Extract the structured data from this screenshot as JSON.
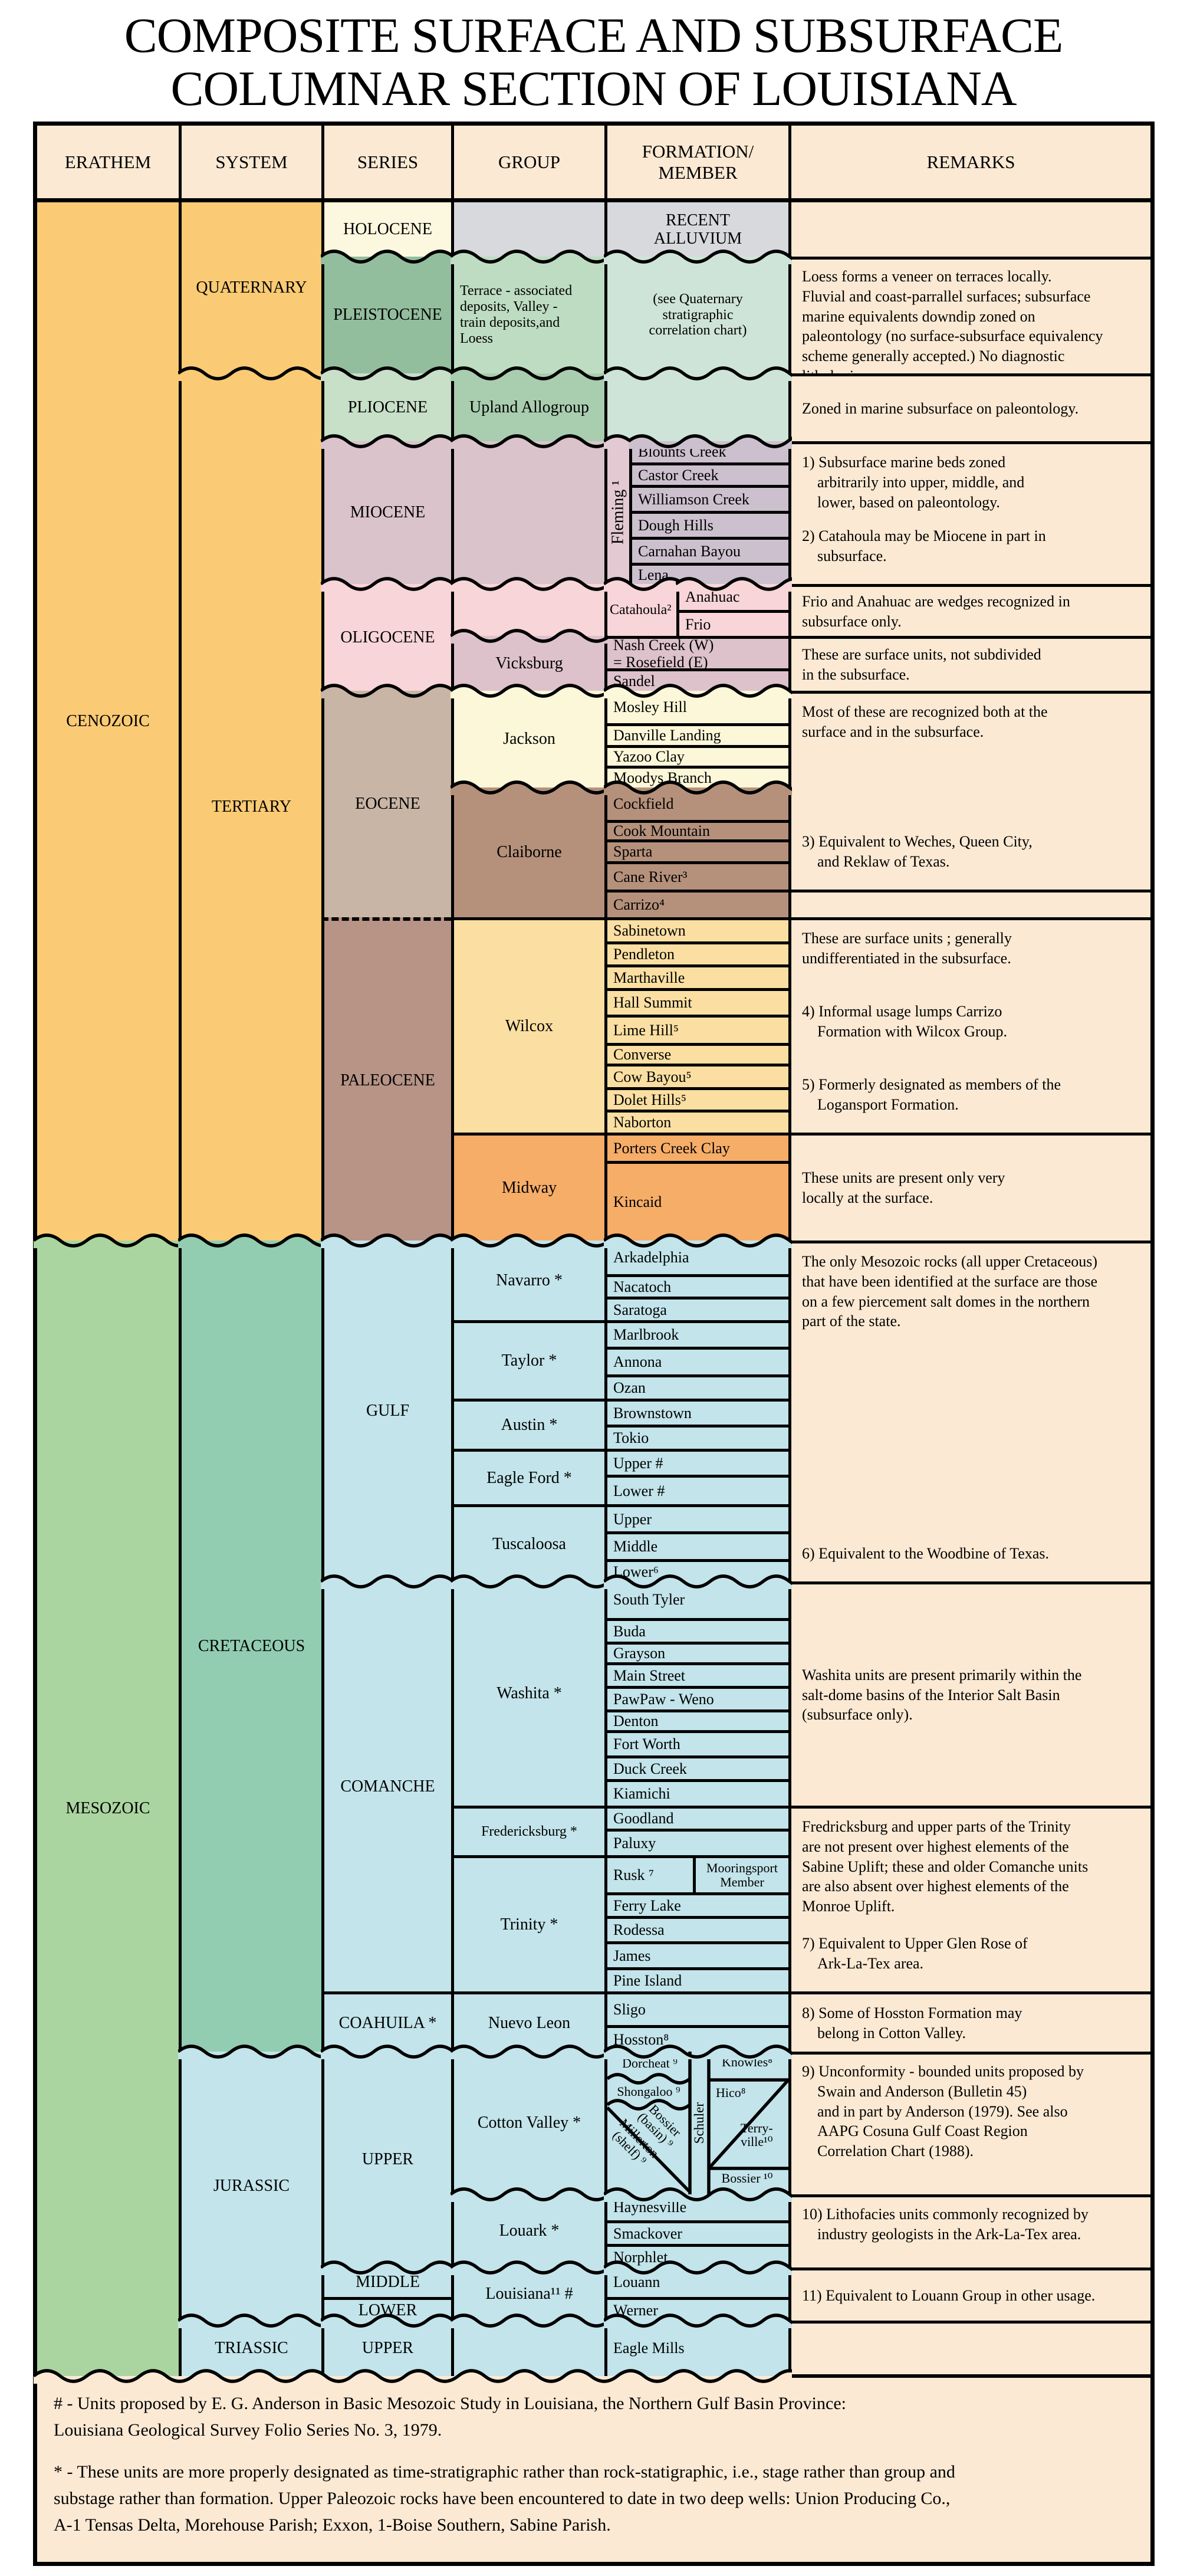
{
  "title": {
    "line1": "COMPOSITE SURFACE AND SUBSURFACE",
    "line2": "COLUMNAR SECTION OF LOUISIANA"
  },
  "headers": {
    "erathem": "ERATHEM",
    "system": "SYSTEM",
    "series": "SERIES",
    "group": "GROUP",
    "formation": "FORMATION/\nMEMBER",
    "remarks": "REMARKS"
  },
  "erathem": {
    "cenozoic": "CENOZOIC",
    "mesozoic": "MESOZOIC"
  },
  "system": {
    "quaternary": "QUATERNARY",
    "tertiary": "TERTIARY",
    "cretaceous": "CRETACEOUS",
    "jurassic": "JURASSIC",
    "triassic": "TRIASSIC"
  },
  "series": {
    "holocene": "HOLOCENE",
    "pleistocene": "PLEISTOCENE",
    "pliocene": "PLIOCENE",
    "miocene": "MIOCENE",
    "oligocene": "OLIGOCENE",
    "eocene": "EOCENE",
    "paleocene": "PALEOCENE",
    "gulf": "GULF",
    "comanche": "COMANCHE",
    "coahuila": "COAHUILA *",
    "upper_j": "UPPER",
    "middle_j": "MIDDLE",
    "lower_j": "LOWER",
    "upper_t": "UPPER"
  },
  "group": {
    "terrace": "Terrace - associated\ndeposits, Valley -\ntrain deposits,and\nLoess",
    "upland": "Upland Allogroup",
    "fleming": "Fleming ¹",
    "vicksburg": "Vicksburg",
    "jackson": "Jackson",
    "claiborne": "Claiborne",
    "wilcox": "Wilcox",
    "midway": "Midway",
    "navarro": "Navarro *",
    "taylor": "Taylor *",
    "austin": "Austin *",
    "eagle_ford": "Eagle Ford *",
    "tuscaloosa": "Tuscaloosa",
    "washita": "Washita *",
    "fredericksburg": "Fredericksburg *",
    "trinity": "Trinity *",
    "nuevo_leon": "Nuevo Leon",
    "cotton_valley": "Cotton Valley *",
    "louark": "Louark *",
    "louisiana": "Louisiana¹¹ #"
  },
  "formation": {
    "recent_alluvium": "RECENT\nALLUVIUM",
    "see_quaternary": "(see Quaternary\nstratigraphic\ncorrelation chart)",
    "blounts_creek": "Blounts Creek",
    "castor_creek": "Castor Creek",
    "williamson_creek": "Williamson Creek",
    "dough_hills": "Dough Hills",
    "carnahan_bayou": "Carnahan Bayou",
    "lena": "Lena",
    "catahoula": "Catahoula²",
    "anahuac": "Anahuac",
    "frio": "Frio",
    "nash_creek": "Nash Creek (W)\n= Rosefield (E)",
    "sandel": "Sandel",
    "mosley_hill": "Mosley Hill",
    "danville_landing": "Danville Landing",
    "yazoo_clay": "Yazoo Clay",
    "moodys_branch": "Moodys Branch",
    "cockfield": "Cockfield",
    "cook_mountain": "Cook Mountain",
    "sparta": "Sparta",
    "cane_river": "Cane River³",
    "carrizo": "Carrizo⁴",
    "sabinetown": "Sabinetown",
    "pendleton": "Pendleton",
    "marthaville": "Marthaville",
    "hall_summit": "Hall Summit",
    "lime_hill": "Lime Hill⁵",
    "converse": "Converse",
    "cow_bayou": "Cow Bayou⁵",
    "dolet_hills": "Dolet Hills⁵",
    "naborton": "Naborton",
    "porters_creek": "Porters Creek Clay",
    "kincaid": "Kincaid",
    "arkadelphia": "Arkadelphia",
    "nacatoch": "Nacatoch",
    "saratoga": "Saratoga",
    "marlbrook": "Marlbrook",
    "annona": "Annona",
    "ozan": "Ozan",
    "brownstown": "Brownstown",
    "tokio": "Tokio",
    "upper_ef": "Upper #",
    "lower_ef": "Lower #",
    "upper_tusc": "Upper",
    "middle_tusc": "Middle",
    "lower_tusc": "Lower⁶",
    "south_tyler": "South Tyler",
    "buda": "Buda",
    "grayson": "Grayson",
    "main_street": "Main Street",
    "pawpaw_weno": "PawPaw - Weno",
    "denton": "Denton",
    "fort_worth": "Fort Worth",
    "duck_creek": "Duck Creek",
    "kiamichi": "Kiamichi",
    "goodland": "Goodland",
    "paluxy": "Paluxy",
    "rusk": "Rusk ⁷",
    "mooringsport": "Mooringsport\nMember",
    "ferry_lake": "Ferry Lake",
    "rodessa": "Rodessa",
    "james": "James",
    "pine_island": "Pine Island",
    "sligo": "Sligo",
    "hosston": "Hosston⁸",
    "dorcheat": "Dorcheat ⁹",
    "shongaloo": "Shongaloo ⁹",
    "bossier_basin": "Bossier\n(basin) ⁹",
    "millerton_shelf": "Millerton\n(shelf) ⁹",
    "schuler": "Schuler",
    "knowles": "Knowles⁸",
    "hico": "Hico⁸",
    "terryville": "Terry-\nville¹⁰",
    "bossier": "Bossier ¹⁰",
    "haynesville": "Haynesville",
    "smackover": "Smackover",
    "norphlet": "Norphlet",
    "louann": "Louann",
    "werner": "Werner",
    "eagle_mills": "Eagle Mills"
  },
  "remarks": {
    "loess": "Loess forms a veneer on terraces locally.\nFluvial and coast-parrallel surfaces; subsurface\nmarine equivalents downdip zoned on\npaleontology (no surface-subsurface equivalency\nscheme generally accepted.) No diagnostic\nlithologies.",
    "pliocene_zoned": "Zoned in marine subsurface on paleontology.",
    "mio1": "1) Subsurface marine beds zoned\n    arbitrarily into upper, middle, and\n    lower, based on paleontology.",
    "mio2": "2) Catahoula may be Miocene in part in\n    subsurface.",
    "frio_anahuac": "Frio and Anahuac are wedges recognized in\nsubsurface only.",
    "surface_units": "These are surface units, not subdivided\nin the subsurface.",
    "recognized": "Most of these are recognized both at the\nsurface and in the subsurface.",
    "note3": "3) Equivalent to Weches, Queen City,\n    and Reklaw of Texas.",
    "wilcox_surface": "These are surface units ; generally\nundifferentiated in the subsurface.",
    "note4": "4) Informal usage lumps Carrizo\n    Formation with Wilcox Group.",
    "note5": "5) Formerly designated as members of the\n    Logansport Formation.",
    "midway_local": "These units are present only very\nlocally at the surface.",
    "mesozoic_rocks": "The only Mesozoic rocks (all upper Cretaceous)\nthat have been identified at the surface are those\non a few piercement salt domes in the northern\npart of the state.",
    "note6": "6) Equivalent to the Woodbine of Texas.",
    "washita_units": "Washita units are present primarily within the\nsalt-dome basins of the Interior Salt Basin\n(subsurface only).",
    "fredricksburg": "Fredricksburg and upper parts of the Trinity\nare not present over highest elements of the\nSabine Uplift; these and older Comanche units\nare also absent over highest elements of the\nMonroe Uplift.",
    "note7": "7) Equivalent to Upper Glen Rose of\n    Ark-La-Tex area.",
    "note8": "8) Some of Hosston Formation may\n    belong in Cotton Valley.",
    "note9": "9) Unconformity - bounded units proposed by\n    Swain and Anderson (Bulletin 45)\n    and in part by Anderson (1979). See also\n    AAPG Cosuna Gulf Coast Region\n    Correlation Chart (1988).",
    "note10": "10) Lithofacies units commonly recognized by\n    industry geologists in the Ark-La-Tex area.",
    "note11": "11) Equivalent to Louann Group in other usage."
  },
  "footnotes": {
    "hash": "# - Units proposed by E. G. Anderson in Basic Mesozoic Study in Louisiana, the Northern Gulf Basin Province:\nLouisiana Geological Survey Folio Series No. 3, 1979.",
    "star": "* - These units are more properly designated as time-stratigraphic rather than rock-statigraphic, i.e., stage rather than group and\nsubstage rather than formation. Upper Paleozoic rocks have been encountered to date in two deep wells: Union Producing Co.,\nA-1 Tensas Delta, Morehouse Parish; Exxon, 1-Boise Southern, Sabine Parish."
  },
  "colors": {
    "table_bg": "#FBE9D3",
    "cenozoic_orange": "#FACB74",
    "holocene_cream": "#FCF8DF",
    "quaternary_gray": "#D7D9DC",
    "pleistocene_green": "#93BE9E",
    "pleistocene_group_green": "#BEDCC2",
    "pale_green": "#CFE4D8",
    "pliocene_green": "#C8DFC8",
    "upland_green": "#A9CDAF",
    "miocene_mauve": "#DAC3CB",
    "fleming_pink": "#E2C9D2",
    "fleming_gray": "#CCC0CE",
    "oligocene_pink": "#F8D5D8",
    "vicksburg_mauve": "#DDC2CB",
    "eocene_tan": "#C9B5A5",
    "jackson_cream": "#FBF7D8",
    "claiborne_brown": "#B5917B",
    "paleocene_brown": "#B79486",
    "wilcox_yellow": "#FBDFA2",
    "midway_orange": "#F6AD68",
    "mesozoic_green": "#ABD5A0",
    "cretaceous_teal": "#92CDB1",
    "mesozoic_blue": "#C2E4EA",
    "line": "#000000"
  }
}
